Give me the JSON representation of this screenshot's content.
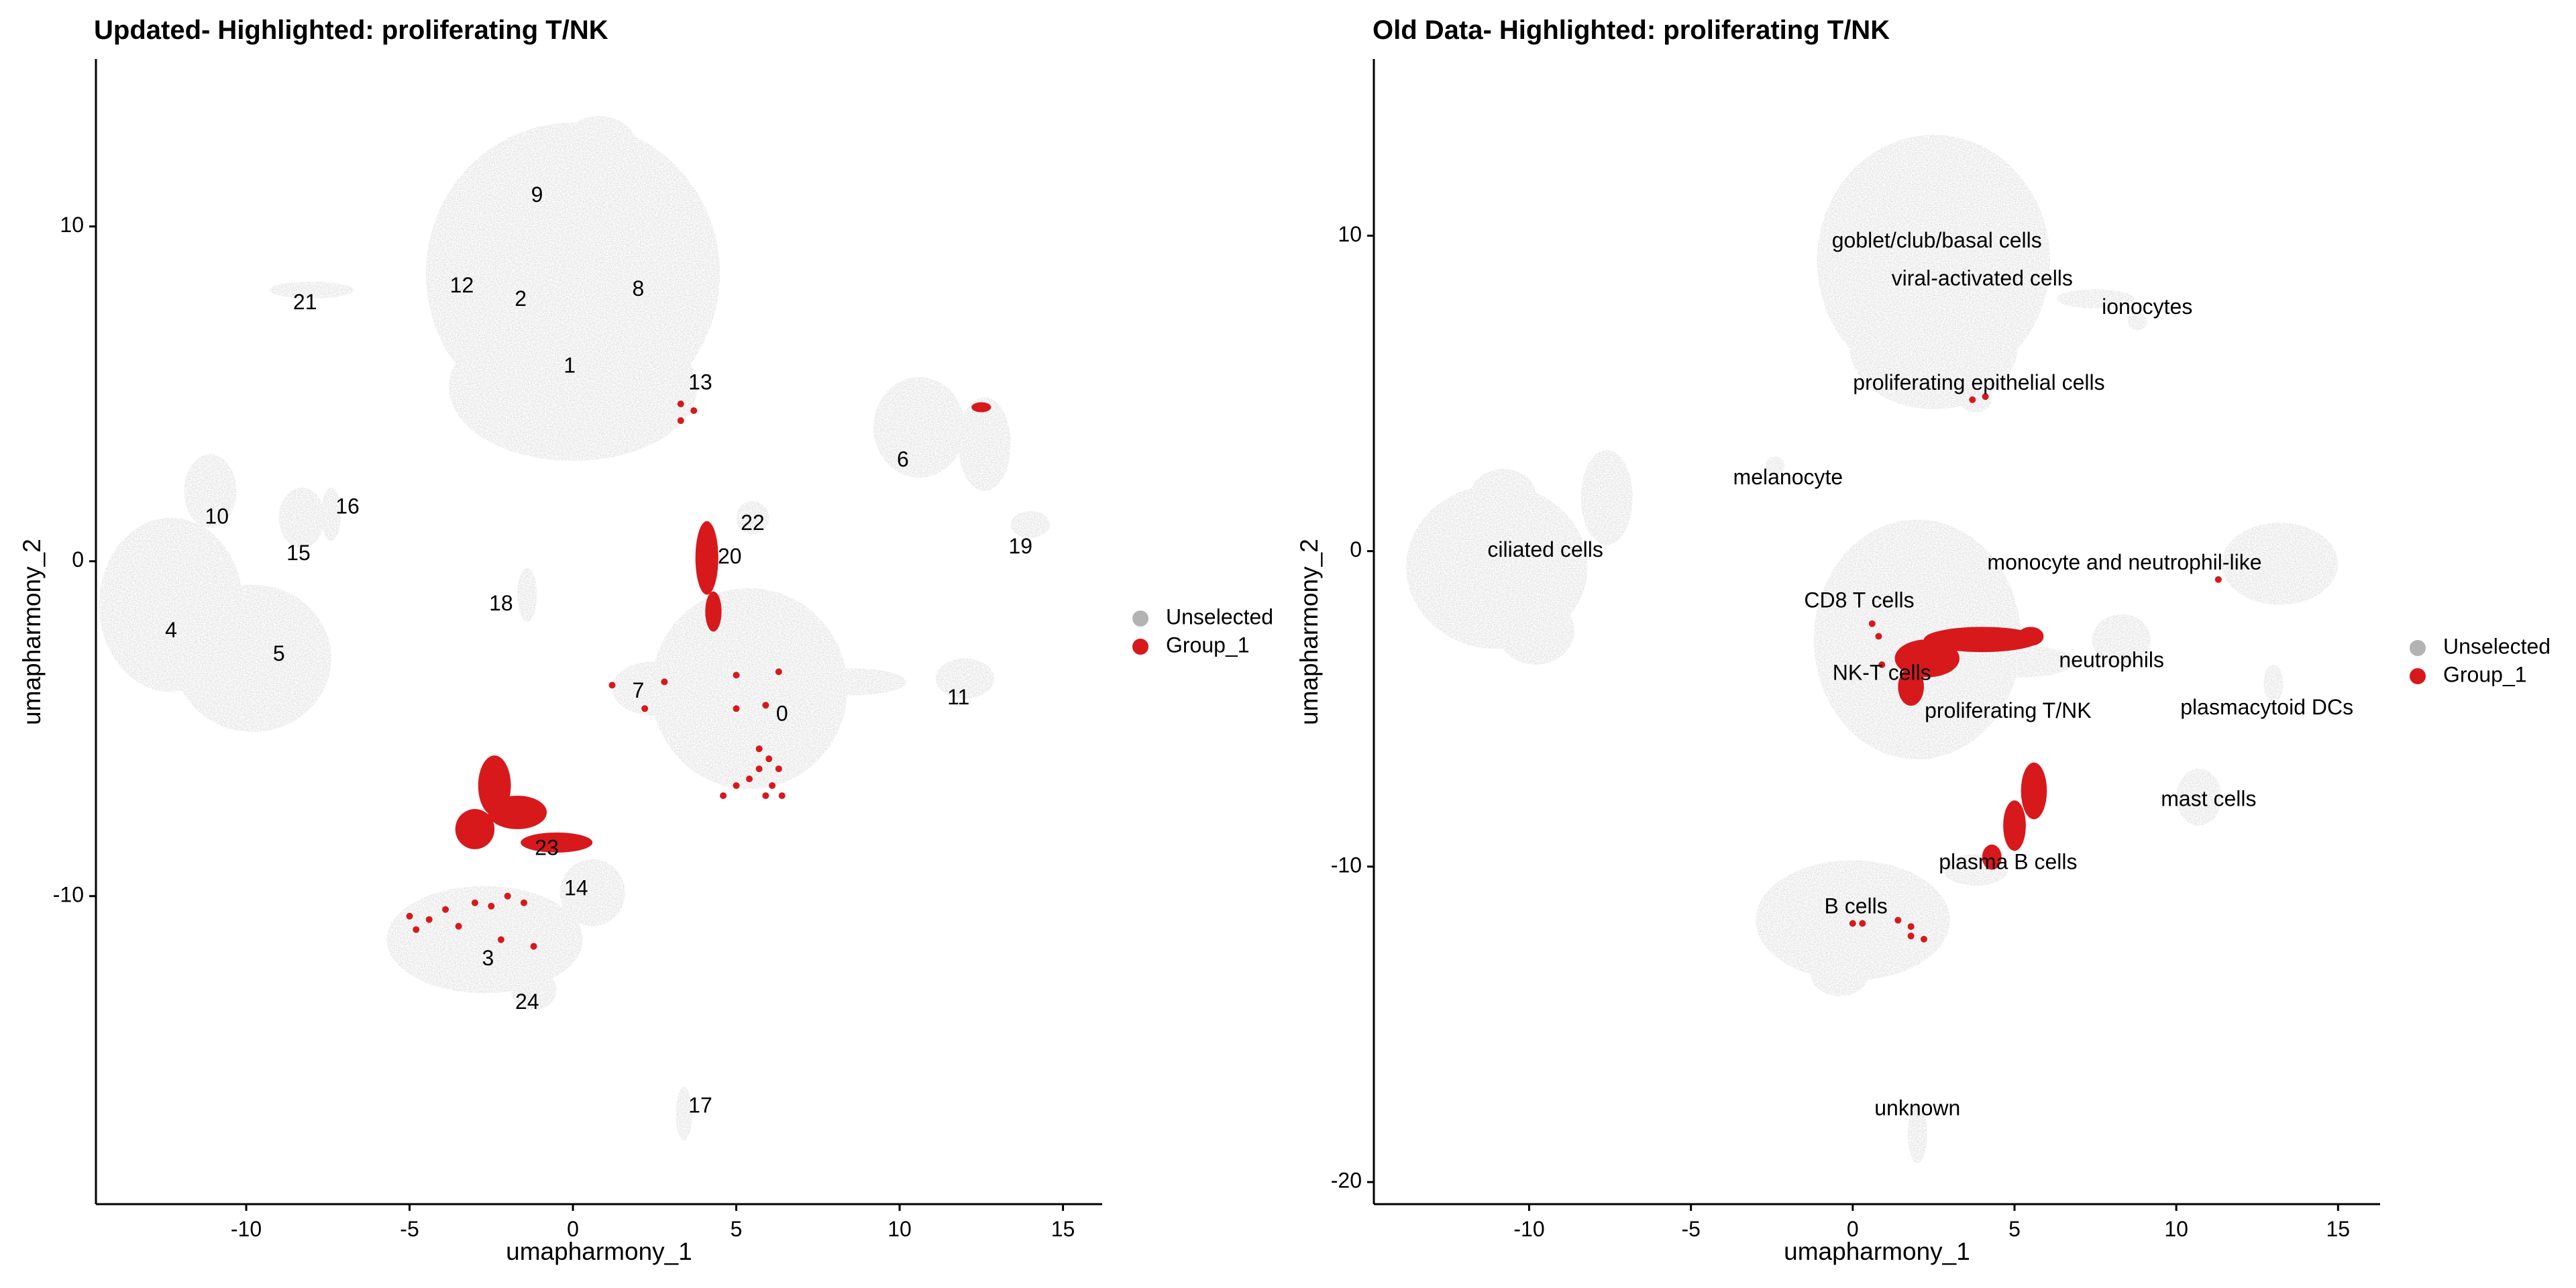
{
  "colors": {
    "unselected": "#b3b3b3",
    "group": "#d7191c"
  },
  "chart_data": [
    {
      "type": "scatter",
      "title": "Updated- Highlighted: proliferating T/NK",
      "xlabel": "umapharmony_1",
      "ylabel": "umapharmony_2",
      "xlim": [
        -14.6,
        16.2
      ],
      "ylim": [
        -19.2,
        15.0
      ],
      "xticks": [
        -10,
        -5,
        0,
        5,
        10,
        15
      ],
      "yticks": [
        -10,
        0,
        10
      ],
      "grid": false,
      "legend": {
        "placement": "right",
        "entries": [
          "Unselected",
          "Group_1"
        ]
      },
      "background_clusters": [
        {
          "cx": 0,
          "cy": 8.6,
          "rx": 4.5,
          "ry": 4.5
        },
        {
          "cx": 0,
          "cy": 5.2,
          "rx": 3.8,
          "ry": 2.2
        },
        {
          "cx": 0.8,
          "cy": 12.3,
          "rx": 1.2,
          "ry": 1.0
        },
        {
          "cx": -12.3,
          "cy": -1.3,
          "rx": 2.2,
          "ry": 2.6
        },
        {
          "cx": -9.8,
          "cy": -2.9,
          "rx": 2.4,
          "ry": 2.2
        },
        {
          "cx": -11.1,
          "cy": 2.1,
          "rx": 0.8,
          "ry": 1.1
        },
        {
          "cx": -8.3,
          "cy": 1.3,
          "rx": 0.7,
          "ry": 0.9
        },
        {
          "cx": -7.4,
          "cy": 1.4,
          "rx": 0.3,
          "ry": 0.8
        },
        {
          "cx": -1.4,
          "cy": -1.0,
          "rx": 0.3,
          "ry": 0.8
        },
        {
          "cx": -8.0,
          "cy": 8.1,
          "rx": 1.3,
          "ry": 0.25
        },
        {
          "cx": 5.4,
          "cy": -3.8,
          "rx": 3.0,
          "ry": 3.0
        },
        {
          "cx": 2.4,
          "cy": -3.8,
          "rx": 1.2,
          "ry": 0.8
        },
        {
          "cx": 8.6,
          "cy": -3.6,
          "rx": 1.6,
          "ry": 0.4
        },
        {
          "cx": 12.0,
          "cy": -3.5,
          "rx": 0.9,
          "ry": 0.6
        },
        {
          "cx": 10.6,
          "cy": 4.0,
          "rx": 1.4,
          "ry": 1.5
        },
        {
          "cx": 12.6,
          "cy": 3.5,
          "rx": 0.8,
          "ry": 1.4
        },
        {
          "cx": 14.0,
          "cy": 1.1,
          "rx": 0.6,
          "ry": 0.4
        },
        {
          "cx": -2.7,
          "cy": -11.3,
          "rx": 3.0,
          "ry": 1.6
        },
        {
          "cx": 0.6,
          "cy": -9.9,
          "rx": 1.0,
          "ry": 1.0
        },
        {
          "cx": -1.2,
          "cy": -12.8,
          "rx": 0.7,
          "ry": 0.6
        },
        {
          "cx": 3.4,
          "cy": -16.5,
          "rx": 0.25,
          "ry": 0.8
        },
        {
          "cx": 5.5,
          "cy": 1.3,
          "rx": 0.5,
          "ry": 0.5
        }
      ],
      "highlighted_clusters": [
        {
          "cx": 4.1,
          "cy": 0.1,
          "rx": 0.35,
          "ry": 1.1
        },
        {
          "cx": 4.3,
          "cy": -1.5,
          "rx": 0.25,
          "ry": 0.6
        },
        {
          "cx": -2.4,
          "cy": -6.7,
          "rx": 0.5,
          "ry": 0.9
        },
        {
          "cx": -1.7,
          "cy": -7.5,
          "rx": 0.9,
          "ry": 0.5
        },
        {
          "cx": -0.5,
          "cy": -8.4,
          "rx": 1.1,
          "ry": 0.3
        },
        {
          "cx": -3.0,
          "cy": -8.0,
          "rx": 0.6,
          "ry": 0.6
        },
        {
          "cx": 12.5,
          "cy": 4.6,
          "rx": 0.3,
          "ry": 0.15
        }
      ],
      "highlighted_points": [
        [
          3.3,
          4.7
        ],
        [
          3.7,
          4.5
        ],
        [
          3.3,
          4.2
        ],
        [
          1.2,
          -3.7
        ],
        [
          2.8,
          -3.6
        ],
        [
          2.2,
          -4.4
        ],
        [
          5.0,
          -3.4
        ],
        [
          6.3,
          -3.3
        ],
        [
          5.9,
          -4.3
        ],
        [
          5.7,
          -5.6
        ],
        [
          6.0,
          -5.9
        ],
        [
          6.3,
          -6.2
        ],
        [
          5.4,
          -6.5
        ],
        [
          6.1,
          -6.7
        ],
        [
          6.4,
          -7.0
        ],
        [
          5.9,
          -7.0
        ],
        [
          5.0,
          -6.7
        ],
        [
          4.6,
          -7.0
        ],
        [
          5.0,
          -4.4
        ],
        [
          5.7,
          -6.2
        ],
        [
          -5.0,
          -10.6
        ],
        [
          -4.4,
          -10.7
        ],
        [
          -3.5,
          -10.9
        ],
        [
          -4.8,
          -11.0
        ],
        [
          -3.0,
          -10.2
        ],
        [
          -2.5,
          -10.3
        ],
        [
          -2.0,
          -10.0
        ],
        [
          -1.5,
          -10.2
        ],
        [
          -2.2,
          -11.3
        ],
        [
          -1.2,
          -11.5
        ],
        [
          -3.9,
          -10.4
        ]
      ],
      "cluster_labels": [
        {
          "text": "0",
          "x": 6.4,
          "y": -4.6
        },
        {
          "text": "1",
          "x": -0.1,
          "y": 5.8
        },
        {
          "text": "2",
          "x": -1.6,
          "y": 7.8
        },
        {
          "text": "3",
          "x": -2.6,
          "y": -11.9
        },
        {
          "text": "4",
          "x": -12.3,
          "y": -2.1
        },
        {
          "text": "5",
          "x": -9.0,
          "y": -2.8
        },
        {
          "text": "6",
          "x": 10.1,
          "y": 3.0
        },
        {
          "text": "7",
          "x": 2.0,
          "y": -3.9
        },
        {
          "text": "8",
          "x": 2.0,
          "y": 8.1
        },
        {
          "text": "9",
          "x": -1.1,
          "y": 10.9
        },
        {
          "text": "10",
          "x": -10.9,
          "y": 1.3
        },
        {
          "text": "11",
          "x": 11.8,
          "y": -4.1
        },
        {
          "text": "12",
          "x": -3.4,
          "y": 8.2
        },
        {
          "text": "13",
          "x": 3.9,
          "y": 5.3
        },
        {
          "text": "14",
          "x": 0.1,
          "y": -9.8
        },
        {
          "text": "15",
          "x": -8.4,
          "y": 0.2
        },
        {
          "text": "16",
          "x": -6.9,
          "y": 1.6
        },
        {
          "text": "17",
          "x": 3.9,
          "y": -16.3
        },
        {
          "text": "18",
          "x": -2.2,
          "y": -1.3
        },
        {
          "text": "19",
          "x": 13.7,
          "y": 0.4
        },
        {
          "text": "20",
          "x": 4.8,
          "y": 0.1
        },
        {
          "text": "21",
          "x": -8.2,
          "y": 7.7
        },
        {
          "text": "22",
          "x": 5.5,
          "y": 1.1
        },
        {
          "text": "23",
          "x": -0.8,
          "y": -8.6
        },
        {
          "text": "24",
          "x": -1.4,
          "y": -13.2
        }
      ]
    },
    {
      "type": "scatter",
      "title": "Old Data- Highlighted: proliferating T/NK",
      "xlabel": "umapharmony_1",
      "ylabel": "umapharmony_2",
      "xlim": [
        -14.8,
        16.3
      ],
      "ylim": [
        -20.7,
        15.6
      ],
      "xticks": [
        -10,
        -5,
        0,
        5,
        10,
        15
      ],
      "yticks": [
        -20,
        -10,
        0,
        10
      ],
      "grid": false,
      "legend": {
        "placement": "right",
        "entries": [
          "Unselected",
          "Group_1"
        ]
      },
      "background_clusters": [
        {
          "cx": 2.5,
          "cy": 9.2,
          "rx": 3.6,
          "ry": 4.0
        },
        {
          "cx": 2.5,
          "cy": 6.5,
          "rx": 2.6,
          "ry": 2.0
        },
        {
          "cx": 3.8,
          "cy": 4.8,
          "rx": 0.5,
          "ry": 0.4
        },
        {
          "cx": 7.5,
          "cy": 8.0,
          "rx": 1.2,
          "ry": 0.3
        },
        {
          "cx": 8.8,
          "cy": 7.3,
          "rx": 0.3,
          "ry": 0.3
        },
        {
          "cx": -11.0,
          "cy": -0.5,
          "rx": 2.8,
          "ry": 2.6
        },
        {
          "cx": -10.8,
          "cy": 1.8,
          "rx": 1.0,
          "ry": 0.8
        },
        {
          "cx": -9.8,
          "cy": -2.5,
          "rx": 1.2,
          "ry": 1.1
        },
        {
          "cx": -7.6,
          "cy": 1.7,
          "rx": 0.8,
          "ry": 1.5
        },
        {
          "cx": -2.4,
          "cy": 2.7,
          "rx": 0.3,
          "ry": 0.3
        },
        {
          "cx": 2.0,
          "cy": -2.8,
          "rx": 3.2,
          "ry": 3.8
        },
        {
          "cx": 5.2,
          "cy": -3.5,
          "rx": 1.7,
          "ry": 0.5
        },
        {
          "cx": 8.3,
          "cy": -2.8,
          "rx": 0.9,
          "ry": 0.8
        },
        {
          "cx": 13.2,
          "cy": -0.4,
          "rx": 1.8,
          "ry": 1.3
        },
        {
          "cx": 13.0,
          "cy": -4.2,
          "rx": 0.3,
          "ry": 0.6
        },
        {
          "cx": 10.7,
          "cy": -7.8,
          "rx": 0.7,
          "ry": 0.9
        },
        {
          "cx": 3.8,
          "cy": -10.1,
          "rx": 1.0,
          "ry": 0.5
        },
        {
          "cx": 0.0,
          "cy": -11.7,
          "rx": 3.0,
          "ry": 1.9
        },
        {
          "cx": -0.4,
          "cy": -13.4,
          "rx": 0.9,
          "ry": 0.7
        },
        {
          "cx": 2.0,
          "cy": -18.5,
          "rx": 0.3,
          "ry": 0.9
        }
      ],
      "highlighted_clusters": [
        {
          "cx": 4.0,
          "cy": -2.8,
          "rx": 1.8,
          "ry": 0.4
        },
        {
          "cx": 2.3,
          "cy": -3.4,
          "rx": 1.0,
          "ry": 0.6
        },
        {
          "cx": 1.8,
          "cy": -4.3,
          "rx": 0.4,
          "ry": 0.6
        },
        {
          "cx": 5.5,
          "cy": -2.7,
          "rx": 0.4,
          "ry": 0.3
        },
        {
          "cx": 5.6,
          "cy": -7.6,
          "rx": 0.4,
          "ry": 0.9
        },
        {
          "cx": 5.0,
          "cy": -8.7,
          "rx": 0.35,
          "ry": 0.8
        },
        {
          "cx": 4.3,
          "cy": -9.7,
          "rx": 0.3,
          "ry": 0.4
        }
      ],
      "highlighted_points": [
        [
          3.7,
          4.8
        ],
        [
          4.1,
          4.9
        ],
        [
          0.6,
          -2.3
        ],
        [
          0.8,
          -2.7
        ],
        [
          11.3,
          -0.9
        ],
        [
          0.0,
          -11.8
        ],
        [
          0.3,
          -11.8
        ],
        [
          1.4,
          -11.7
        ],
        [
          1.8,
          -11.9
        ],
        [
          1.8,
          -12.2
        ],
        [
          2.2,
          -12.3
        ],
        [
          0.9,
          -3.6
        ]
      ],
      "cluster_labels": [
        {
          "text": "goblet/club/basal cells",
          "x": 2.6,
          "y": 9.8
        },
        {
          "text": "viral-activated cells",
          "x": 4.0,
          "y": 8.6
        },
        {
          "text": "ionocytes",
          "x": 9.1,
          "y": 7.7
        },
        {
          "text": "proliferating epithelial cells",
          "x": 3.9,
          "y": 5.3
        },
        {
          "text": "melanocyte",
          "x": -2.0,
          "y": 2.3
        },
        {
          "text": "ciliated cells",
          "x": -9.5,
          "y": 0.0
        },
        {
          "text": "monocyte and neutrophil-like",
          "x": 8.4,
          "y": -0.4
        },
        {
          "text": "CD8 T cells",
          "x": 0.2,
          "y": -1.6
        },
        {
          "text": "NK-T cells",
          "x": 0.9,
          "y": -3.9
        },
        {
          "text": "neutrophils",
          "x": 8.0,
          "y": -3.5
        },
        {
          "text": "proliferating T/NK",
          "x": 4.8,
          "y": -5.1
        },
        {
          "text": "plasmacytoid DCs",
          "x": 12.8,
          "y": -5.0
        },
        {
          "text": "mast cells",
          "x": 11.0,
          "y": -7.9
        },
        {
          "text": "plasma B cells",
          "x": 4.8,
          "y": -9.9
        },
        {
          "text": "B cells",
          "x": 0.1,
          "y": -11.3
        },
        {
          "text": "unknown",
          "x": 2.0,
          "y": -17.7
        }
      ]
    }
  ]
}
